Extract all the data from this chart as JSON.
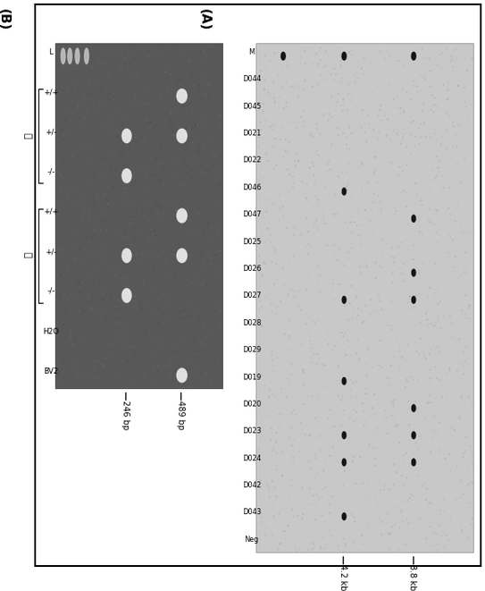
{
  "panel_A_labels": [
    "M",
    "D044",
    "D045",
    "D021",
    "D022",
    "D046",
    "D047",
    "D025",
    "D026",
    "D027",
    "D028",
    "D029",
    "D019",
    "D020",
    "D023",
    "D024",
    "D042",
    "D043",
    "Neg"
  ],
  "band1_present": [
    1,
    0,
    0,
    0,
    0,
    0,
    1,
    0,
    1,
    1,
    0,
    0,
    0,
    1,
    1,
    1,
    0,
    0,
    0
  ],
  "band2_present": [
    1,
    0,
    0,
    0,
    0,
    1,
    0,
    0,
    0,
    1,
    0,
    0,
    1,
    0,
    1,
    1,
    0,
    1,
    0
  ],
  "marker_band3_only": [
    1,
    0,
    0,
    0,
    0,
    0,
    0,
    0,
    0,
    0,
    0,
    0,
    0,
    0,
    0,
    0,
    0,
    0,
    0
  ],
  "panel_B_lane_labels": [
    "L",
    "+/+",
    "+/-",
    "-/-",
    "+/+",
    "+/-",
    "-/-",
    "H2O",
    "BV2"
  ],
  "panel_B_bands_489": [
    0,
    1,
    1,
    0,
    1,
    1,
    0,
    0,
    1
  ],
  "panel_B_bands_246": [
    0,
    0,
    1,
    1,
    0,
    1,
    1,
    0,
    0
  ],
  "panel_B_ladder": 1,
  "panel_B_group1_label": "雄",
  "panel_B_group2_label": "雌",
  "size_marker_A": [
    "8.8 kb",
    "4.2 kb"
  ],
  "size_marker_B": [
    "489 bp",
    "246 bp"
  ],
  "panel_label_A": "(A)",
  "panel_label_B": "(B)",
  "gel_A_bg": "#c8c8c8",
  "gel_B_bg": "#585858",
  "outer_bg": "#ffffff",
  "band_A_color": "#151515",
  "band_B_color": "#e0e0e0",
  "figure_rotation_deg": 90
}
